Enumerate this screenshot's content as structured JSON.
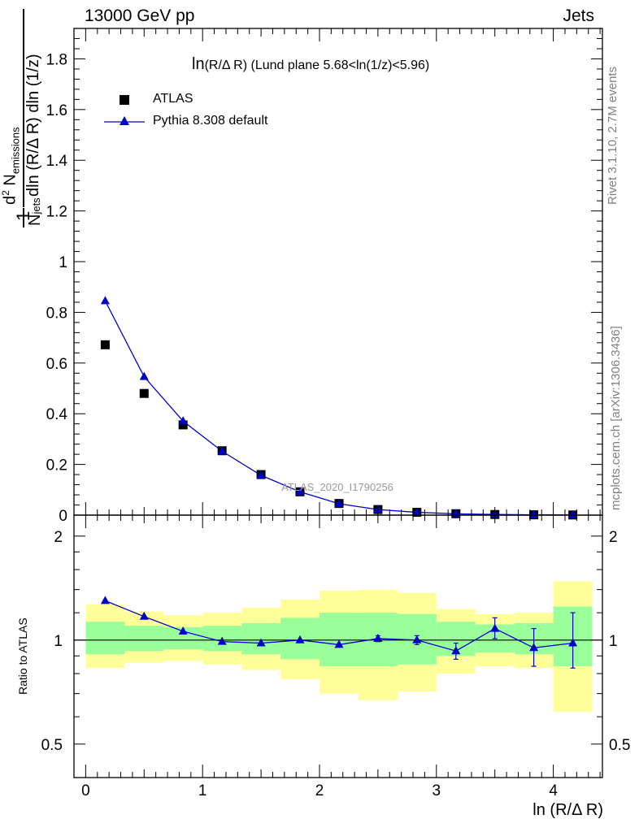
{
  "header": {
    "left": "13000 GeV pp",
    "right": "Jets"
  },
  "side_labels": {
    "rivet": "Rivet 3.1.10,  2.7M events",
    "mcplots": "mcplots.cern.ch [arXiv:1306.3436]"
  },
  "chart_data": [
    {
      "type": "scatter",
      "panel": "main",
      "title": "ln(R/Δ R) (Lund plane 5.68<ln(1/z)<5.96)",
      "title_parts": [
        "ln",
        "(R/Δ R)",
        " (Lund plane 5.68<ln(1/z)<5.96)"
      ],
      "ylabel": "1/N_jets d²N_emissions / dln (R/Δ R) dln (1/z)",
      "ylabel_parts": {
        "frac_num": "1",
        "frac_den_main": "N",
        "frac_den_sub": "jets",
        "d2": "d",
        "d2_sup": "2",
        "N": "N",
        "N_sub": "emissions",
        "den": "dln (R/Δ R) dln (1/z)"
      },
      "watermark": "ATLAS_2020_I1790256",
      "xlim": [
        -0.1,
        4.42
      ],
      "ylim": [
        0,
        1.92
      ],
      "yticks": [
        0.2,
        0.4,
        0.6,
        0.8,
        1,
        1.2,
        1.4,
        1.6,
        1.8
      ],
      "yticklabels": [
        "0.2",
        "0.4",
        "0.6",
        "0.8",
        "1",
        "1.2",
        "1.4",
        "1.6",
        "1.8"
      ],
      "y_zero_label": "0",
      "legend": {
        "position": "top-left",
        "entries": [
          "ATLAS",
          "Pythia 8.308 default"
        ]
      },
      "x": [
        0.167,
        0.5,
        0.833,
        1.167,
        1.5,
        1.833,
        2.167,
        2.5,
        2.833,
        3.167,
        3.5,
        3.833,
        4.167
      ],
      "series": [
        {
          "name": "ATLAS",
          "marker": "square",
          "color": "#000000",
          "values": [
            0.672,
            0.48,
            0.356,
            0.254,
            0.16,
            0.092,
            0.046,
            0.022,
            0.011,
            0.0055,
            0.0025,
            0.0012,
            0.0006
          ]
        },
        {
          "name": "Pythia 8.308 default",
          "marker": "triangle",
          "color": "#0000cc",
          "values": [
            0.845,
            0.546,
            0.371,
            0.252,
            0.157,
            0.092,
            0.045,
            0.022,
            0.011,
            0.0052,
            0.0028,
            0.0012,
            0.0006
          ]
        }
      ]
    },
    {
      "type": "line",
      "panel": "ratio",
      "ylabel": "Ratio to ATLAS",
      "xlabel": "ln (R/Δ R)",
      "xlim": [
        -0.1,
        4.42
      ],
      "ylim": [
        0.4,
        2.3
      ],
      "log_y": true,
      "yticks": [
        0.5,
        1,
        2
      ],
      "yticklabels": [
        "0.5",
        "1",
        "2"
      ],
      "xticks": [
        0,
        1,
        2,
        3,
        4
      ],
      "xticklabels": [
        "0",
        "1",
        "2",
        "3",
        "4"
      ],
      "bin_edges": [
        0,
        0.333,
        0.667,
        1.0,
        1.333,
        1.667,
        2.0,
        2.333,
        2.667,
        3.0,
        3.333,
        3.667,
        4.0,
        4.333
      ],
      "band_yellow": {
        "low": [
          0.83,
          0.86,
          0.87,
          0.85,
          0.82,
          0.77,
          0.7,
          0.67,
          0.71,
          0.8,
          0.84,
          0.83,
          0.62
        ],
        "high": [
          1.27,
          1.21,
          1.18,
          1.2,
          1.24,
          1.31,
          1.39,
          1.4,
          1.37,
          1.23,
          1.19,
          1.2,
          1.48
        ]
      },
      "band_green": {
        "low": [
          0.91,
          0.93,
          0.94,
          0.93,
          0.91,
          0.88,
          0.84,
          0.84,
          0.85,
          0.9,
          0.92,
          0.91,
          0.84
        ],
        "high": [
          1.13,
          1.1,
          1.09,
          1.1,
          1.12,
          1.16,
          1.2,
          1.2,
          1.19,
          1.13,
          1.11,
          1.12,
          1.25
        ]
      },
      "series": [
        {
          "name": "Pythia 8.308 default",
          "color": "#0000cc",
          "values": [
            1.3,
            1.17,
            1.06,
            0.99,
            0.98,
            1.0,
            0.97,
            1.01,
            1.0,
            0.93,
            1.08,
            0.95,
            0.98
          ],
          "err_low": [
            0,
            0,
            0,
            0,
            0,
            0,
            0,
            0.02,
            0.03,
            0.05,
            0.07,
            0.11,
            0.15
          ],
          "err_high": [
            0,
            0,
            0,
            0,
            0,
            0,
            0,
            0.02,
            0.03,
            0.05,
            0.08,
            0.13,
            0.22
          ]
        }
      ]
    }
  ]
}
